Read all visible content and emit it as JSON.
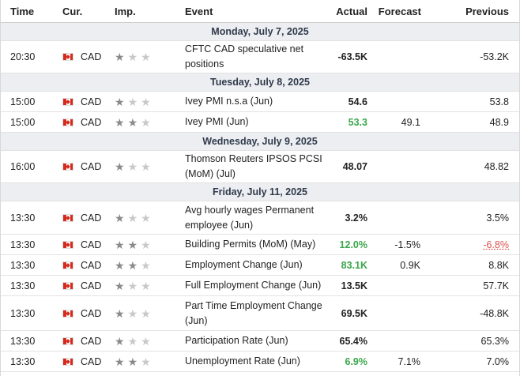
{
  "colors": {
    "flag_red": "#d52b1e",
    "actual_up": "#3aa64a",
    "previous_revised": "#d9534f",
    "date_band": "#eceef2"
  },
  "header": {
    "time": "Time",
    "cur": "Cur.",
    "imp": "Imp.",
    "event": "Event",
    "actual": "Actual",
    "forecast": "Forecast",
    "previous": "Previous"
  },
  "dates": [
    "Monday, July 7, 2025",
    "Tuesday, July 8, 2025",
    "Wednesday, July 9, 2025",
    "Friday, July 11, 2025"
  ],
  "events": [
    {
      "time": "20:30",
      "cur": "CAD",
      "importance": 1,
      "event": "CFTC CAD speculative net positions",
      "actual": "-63.5K",
      "forecast": "",
      "previous": "-53.2K",
      "actual_color": "default",
      "previous_revised": false
    },
    {
      "time": "15:00",
      "cur": "CAD",
      "importance": 1,
      "event": "Ivey PMI n.s.a (Jun)",
      "actual": "54.6",
      "forecast": "",
      "previous": "53.8",
      "actual_color": "default",
      "previous_revised": false
    },
    {
      "time": "15:00",
      "cur": "CAD",
      "importance": 2,
      "event": "Ivey PMI (Jun)",
      "actual": "53.3",
      "forecast": "49.1",
      "previous": "48.9",
      "actual_color": "green",
      "previous_revised": false
    },
    {
      "time": "16:00",
      "cur": "CAD",
      "importance": 1,
      "event": "Thomson Reuters IPSOS PCSI (MoM) (Jul)",
      "actual": "48.07",
      "forecast": "",
      "previous": "48.82",
      "actual_color": "default",
      "previous_revised": false
    },
    {
      "time": "13:30",
      "cur": "CAD",
      "importance": 1,
      "event": "Avg hourly wages Permanent employee (Jun)",
      "actual": "3.2%",
      "forecast": "",
      "previous": "3.5%",
      "actual_color": "default",
      "previous_revised": false
    },
    {
      "time": "13:30",
      "cur": "CAD",
      "importance": 2,
      "event": "Building Permits (MoM) (May)",
      "actual": "12.0%",
      "forecast": "-1.5%",
      "previous": "-6.8%",
      "actual_color": "green",
      "previous_revised": true
    },
    {
      "time": "13:30",
      "cur": "CAD",
      "importance": 2,
      "event": "Employment Change (Jun)",
      "actual": "83.1K",
      "forecast": "0.9K",
      "previous": "8.8K",
      "actual_color": "green",
      "previous_revised": false
    },
    {
      "time": "13:30",
      "cur": "CAD",
      "importance": 1,
      "event": "Full Employment Change (Jun)",
      "actual": "13.5K",
      "forecast": "",
      "previous": "57.7K",
      "actual_color": "default",
      "previous_revised": false
    },
    {
      "time": "13:30",
      "cur": "CAD",
      "importance": 1,
      "event": "Part Time Employment Change (Jun)",
      "actual": "69.5K",
      "forecast": "",
      "previous": "-48.8K",
      "actual_color": "default",
      "previous_revised": false
    },
    {
      "time": "13:30",
      "cur": "CAD",
      "importance": 1,
      "event": "Participation Rate (Jun)",
      "actual": "65.4%",
      "forecast": "",
      "previous": "65.3%",
      "actual_color": "default",
      "previous_revised": false
    },
    {
      "time": "13:30",
      "cur": "CAD",
      "importance": 2,
      "event": "Unemployment Rate (Jun)",
      "actual": "6.9%",
      "forecast": "7.1%",
      "previous": "7.0%",
      "actual_color": "green",
      "previous_revised": false
    }
  ]
}
